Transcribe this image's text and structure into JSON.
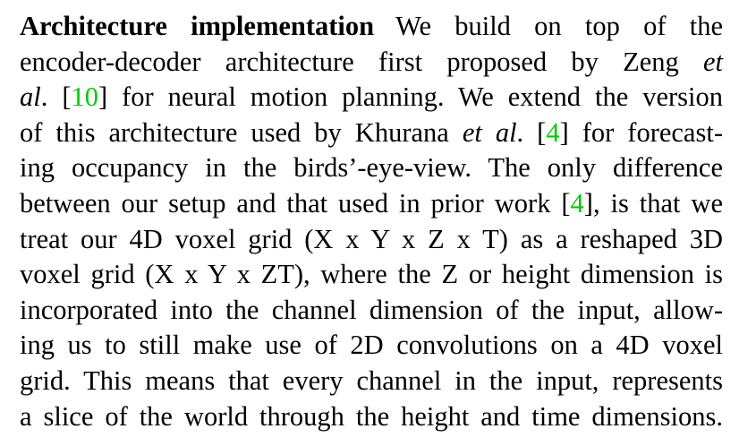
{
  "paragraph": {
    "heading": "Architecture implementation",
    "lines": [
      {
        "segments": [
          {
            "text": "We build on top of the",
            "style": "normal"
          }
        ]
      },
      {
        "segments": [
          {
            "text": "encoder-decoder architecture first proposed by Zeng ",
            "style": "normal"
          },
          {
            "text": "et",
            "style": "italic"
          }
        ]
      },
      {
        "segments": [
          {
            "text": "al",
            "style": "italic"
          },
          {
            "text": ". [",
            "style": "normal"
          },
          {
            "text": "10",
            "style": "cite"
          },
          {
            "text": "] for neural motion planning. We extend the version",
            "style": "normal"
          }
        ]
      },
      {
        "segments": [
          {
            "text": "of this architecture used by Khurana ",
            "style": "normal"
          },
          {
            "text": "et al",
            "style": "italic"
          },
          {
            "text": ". [",
            "style": "normal"
          },
          {
            "text": "4",
            "style": "cite"
          },
          {
            "text": "] for forecast-",
            "style": "normal"
          }
        ]
      },
      {
        "segments": [
          {
            "text": "ing occupancy in the birds’-eye-view. The only difference",
            "style": "normal"
          }
        ]
      },
      {
        "segments": [
          {
            "text": "between our setup and that used in prior work [",
            "style": "normal"
          },
          {
            "text": "4",
            "style": "cite"
          },
          {
            "text": "], is that we",
            "style": "normal"
          }
        ]
      },
      {
        "segments": [
          {
            "text": "treat our 4D voxel grid (X x Y x Z x T) as a reshaped 3D",
            "style": "normal"
          }
        ]
      },
      {
        "segments": [
          {
            "text": "voxel grid (X x Y x ZT), where the Z or height dimension is",
            "style": "normal"
          }
        ]
      },
      {
        "segments": [
          {
            "text": "incorporated into the channel dimension of the input, allow-",
            "style": "normal"
          }
        ]
      },
      {
        "segments": [
          {
            "text": "ing us to still make use of 2D convolutions on a 4D voxel",
            "style": "normal"
          }
        ]
      },
      {
        "segments": [
          {
            "text": "grid. This means that every channel in the input, represents",
            "style": "normal"
          }
        ]
      },
      {
        "segments": [
          {
            "text": "a slice of the world through the height and time dimensions.",
            "style": "normal"
          }
        ]
      }
    ]
  },
  "colors": {
    "text": "#000000",
    "citation": "#00cc00",
    "background": "#ffffff"
  }
}
